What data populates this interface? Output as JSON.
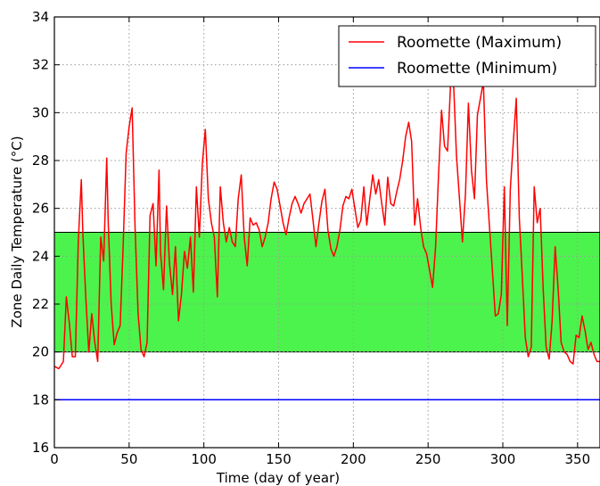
{
  "chart_data": {
    "type": "line",
    "title": "",
    "xlabel": "Time (day of year)",
    "ylabel": "Zone Daily Temperature (°C)",
    "xlim": [
      0,
      365
    ],
    "ylim": [
      16,
      34
    ],
    "x_ticks": [
      0,
      50,
      100,
      150,
      200,
      250,
      300,
      350
    ],
    "y_ticks": [
      16,
      18,
      20,
      22,
      24,
      26,
      28,
      30,
      32,
      34
    ],
    "grid": true,
    "legend_position": "top-right",
    "comfort_band": {
      "low": 20,
      "high": 25,
      "color": "#00ee00"
    },
    "series": [
      {
        "name": "Roomette (Maximum)",
        "color": "#ff0000",
        "points": [
          [
            0,
            19.4
          ],
          [
            3,
            19.3
          ],
          [
            6,
            19.6
          ],
          [
            8,
            22.3
          ],
          [
            10,
            21.2
          ],
          [
            12,
            19.8
          ],
          [
            14,
            19.8
          ],
          [
            16,
            24.6
          ],
          [
            18,
            27.2
          ],
          [
            19,
            25.0
          ],
          [
            21,
            22.3
          ],
          [
            23,
            20.0
          ],
          [
            25,
            21.6
          ],
          [
            27,
            20.4
          ],
          [
            29,
            19.6
          ],
          [
            31,
            24.8
          ],
          [
            33,
            23.8
          ],
          [
            35,
            28.1
          ],
          [
            36,
            25.4
          ],
          [
            38,
            22.0
          ],
          [
            40,
            20.3
          ],
          [
            42,
            20.8
          ],
          [
            44,
            21.1
          ],
          [
            46,
            24.4
          ],
          [
            48,
            28.3
          ],
          [
            50,
            29.4
          ],
          [
            52,
            30.2
          ],
          [
            54,
            25.2
          ],
          [
            56,
            21.6
          ],
          [
            58,
            20.1
          ],
          [
            60,
            19.8
          ],
          [
            62,
            20.4
          ],
          [
            64,
            25.7
          ],
          [
            66,
            26.2
          ],
          [
            68,
            23.6
          ],
          [
            70,
            27.6
          ],
          [
            71,
            24.2
          ],
          [
            73,
            22.6
          ],
          [
            75,
            26.1
          ],
          [
            77,
            23.7
          ],
          [
            79,
            22.4
          ],
          [
            81,
            24.4
          ],
          [
            83,
            21.3
          ],
          [
            85,
            22.4
          ],
          [
            87,
            24.2
          ],
          [
            89,
            23.5
          ],
          [
            91,
            24.8
          ],
          [
            93,
            22.5
          ],
          [
            95,
            26.9
          ],
          [
            97,
            24.8
          ],
          [
            99,
            27.9
          ],
          [
            101,
            29.3
          ],
          [
            103,
            26.4
          ],
          [
            105,
            25.4
          ],
          [
            107,
            24.8
          ],
          [
            109,
            22.3
          ],
          [
            111,
            26.9
          ],
          [
            113,
            25.4
          ],
          [
            115,
            24.6
          ],
          [
            117,
            25.2
          ],
          [
            119,
            24.6
          ],
          [
            121,
            24.4
          ],
          [
            123,
            26.4
          ],
          [
            125,
            27.4
          ],
          [
            127,
            24.8
          ],
          [
            129,
            23.6
          ],
          [
            131,
            25.6
          ],
          [
            133,
            25.3
          ],
          [
            135,
            25.4
          ],
          [
            137,
            25.1
          ],
          [
            139,
            24.4
          ],
          [
            141,
            24.8
          ],
          [
            143,
            25.4
          ],
          [
            145,
            26.4
          ],
          [
            147,
            27.1
          ],
          [
            149,
            26.8
          ],
          [
            151,
            26.1
          ],
          [
            153,
            25.4
          ],
          [
            155,
            24.9
          ],
          [
            157,
            25.6
          ],
          [
            159,
            26.2
          ],
          [
            161,
            26.5
          ],
          [
            163,
            26.2
          ],
          [
            165,
            25.8
          ],
          [
            167,
            26.2
          ],
          [
            169,
            26.4
          ],
          [
            171,
            26.6
          ],
          [
            173,
            25.5
          ],
          [
            175,
            24.4
          ],
          [
            177,
            25.4
          ],
          [
            179,
            26.3
          ],
          [
            181,
            26.8
          ],
          [
            183,
            25.1
          ],
          [
            185,
            24.3
          ],
          [
            187,
            24.0
          ],
          [
            189,
            24.4
          ],
          [
            191,
            25.1
          ],
          [
            193,
            26.1
          ],
          [
            195,
            26.5
          ],
          [
            197,
            26.4
          ],
          [
            199,
            26.8
          ],
          [
            201,
            26.0
          ],
          [
            203,
            25.2
          ],
          [
            205,
            25.5
          ],
          [
            207,
            26.9
          ],
          [
            209,
            25.3
          ],
          [
            211,
            26.4
          ],
          [
            213,
            27.4
          ],
          [
            215,
            26.6
          ],
          [
            217,
            27.2
          ],
          [
            219,
            26.2
          ],
          [
            221,
            25.3
          ],
          [
            223,
            27.3
          ],
          [
            225,
            26.2
          ],
          [
            227,
            26.1
          ],
          [
            229,
            26.7
          ],
          [
            231,
            27.2
          ],
          [
            233,
            28.0
          ],
          [
            235,
            29.0
          ],
          [
            237,
            29.6
          ],
          [
            239,
            28.8
          ],
          [
            241,
            25.3
          ],
          [
            243,
            26.4
          ],
          [
            245,
            25.2
          ],
          [
            247,
            24.4
          ],
          [
            249,
            24.1
          ],
          [
            251,
            23.4
          ],
          [
            253,
            22.7
          ],
          [
            255,
            24.4
          ],
          [
            257,
            27.4
          ],
          [
            259,
            30.1
          ],
          [
            261,
            28.6
          ],
          [
            263,
            28.4
          ],
          [
            265,
            31.1
          ],
          [
            267,
            31.3
          ],
          [
            269,
            28.2
          ],
          [
            271,
            26.4
          ],
          [
            273,
            24.6
          ],
          [
            275,
            26.6
          ],
          [
            277,
            30.4
          ],
          [
            279,
            27.6
          ],
          [
            281,
            26.4
          ],
          [
            283,
            29.9
          ],
          [
            285,
            30.6
          ],
          [
            287,
            31.3
          ],
          [
            289,
            27.2
          ],
          [
            291,
            25.3
          ],
          [
            293,
            23.4
          ],
          [
            295,
            21.5
          ],
          [
            297,
            21.6
          ],
          [
            299,
            22.4
          ],
          [
            301,
            26.9
          ],
          [
            303,
            21.1
          ],
          [
            305,
            26.8
          ],
          [
            307,
            28.8
          ],
          [
            309,
            30.6
          ],
          [
            311,
            25.6
          ],
          [
            313,
            23.2
          ],
          [
            315,
            20.6
          ],
          [
            317,
            19.8
          ],
          [
            319,
            20.2
          ],
          [
            321,
            26.9
          ],
          [
            323,
            25.4
          ],
          [
            325,
            26.0
          ],
          [
            327,
            22.6
          ],
          [
            329,
            20.2
          ],
          [
            331,
            19.7
          ],
          [
            333,
            21.3
          ],
          [
            335,
            24.4
          ],
          [
            337,
            22.6
          ],
          [
            339,
            20.4
          ],
          [
            341,
            20.0
          ],
          [
            343,
            19.9
          ],
          [
            345,
            19.6
          ],
          [
            347,
            19.5
          ],
          [
            349,
            20.7
          ],
          [
            351,
            20.6
          ],
          [
            353,
            21.5
          ],
          [
            355,
            20.9
          ],
          [
            357,
            20.1
          ],
          [
            359,
            20.4
          ],
          [
            361,
            19.9
          ],
          [
            363,
            19.6
          ],
          [
            365,
            19.6
          ]
        ]
      },
      {
        "name": "Roomette (Minimum)",
        "color": "#0000ff",
        "points": [
          [
            0,
            18.0
          ],
          [
            365,
            18.0
          ]
        ]
      }
    ]
  }
}
